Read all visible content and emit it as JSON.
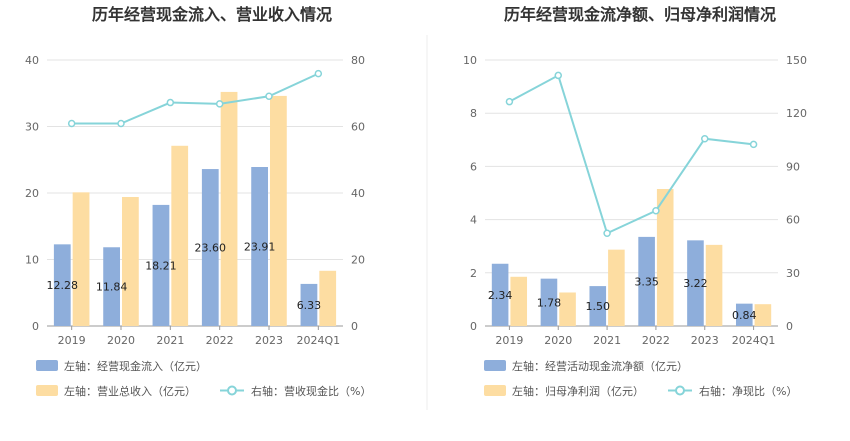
{
  "colors": {
    "bar_primary": "#8EAEDB",
    "bar_secondary": "#FDDDA2",
    "line": "#86D4D9",
    "grid": "#E3E3E3",
    "axis": "#999999",
    "divider": "#EEEEEE"
  },
  "chart_data": [
    {
      "type": "bar",
      "title": "历年经营现金流入、营业收入情况",
      "categories": [
        "2019",
        "2020",
        "2021",
        "2022",
        "2023",
        "2024Q1"
      ],
      "left_axis": {
        "ylim": [
          0,
          40
        ],
        "ticks": [
          "0",
          "10",
          "20",
          "30",
          "40"
        ]
      },
      "right_axis": {
        "ylim": [
          0,
          80
        ],
        "ticks": [
          "0",
          "20",
          "40",
          "60",
          "80"
        ]
      },
      "series": [
        {
          "name": "左轴：经营现金流入（亿元）",
          "kind": "bar",
          "axis": "left",
          "values": [
            12.28,
            11.84,
            18.21,
            23.6,
            23.91,
            6.33
          ],
          "labels": [
            "12.28",
            "11.84",
            "18.21",
            "23.60",
            "23.91",
            "6.33"
          ]
        },
        {
          "name": "左轴：营业总收入（亿元）",
          "kind": "bar",
          "axis": "left",
          "values": [
            20.1,
            19.4,
            27.1,
            35.2,
            34.6,
            8.3
          ]
        },
        {
          "name": "右轴：营收现金比（%）",
          "kind": "line",
          "axis": "right",
          "values": [
            60.9,
            60.9,
            67.2,
            66.8,
            69.1,
            75.9
          ]
        }
      ]
    },
    {
      "type": "bar",
      "title": "历年经营现金流净额、归母净利润情况",
      "categories": [
        "2019",
        "2020",
        "2021",
        "2022",
        "2023",
        "2024Q1"
      ],
      "left_axis": {
        "ylim": [
          0,
          10
        ],
        "ticks": [
          "0",
          "2",
          "4",
          "6",
          "8",
          "10"
        ]
      },
      "right_axis": {
        "ylim": [
          0,
          150
        ],
        "ticks": [
          "0",
          "30",
          "60",
          "90",
          "120",
          "150"
        ]
      },
      "series": [
        {
          "name": "左轴：经营活动现金流净额（亿元）",
          "kind": "bar",
          "axis": "left",
          "values": [
            2.34,
            1.78,
            1.5,
            3.35,
            3.22,
            0.84
          ],
          "labels": [
            "2.34",
            "1.78",
            "1.50",
            "3.35",
            "3.22",
            "0.84"
          ]
        },
        {
          "name": "左轴：归母净利润（亿元）",
          "kind": "bar",
          "axis": "left",
          "values": [
            1.85,
            1.26,
            2.87,
            5.15,
            3.05,
            0.82
          ]
        },
        {
          "name": "右轴：净现比（%）",
          "kind": "line",
          "axis": "right",
          "values": [
            126.5,
            141.3,
            52.3,
            65.0,
            105.6,
            102.4
          ]
        }
      ]
    }
  ]
}
